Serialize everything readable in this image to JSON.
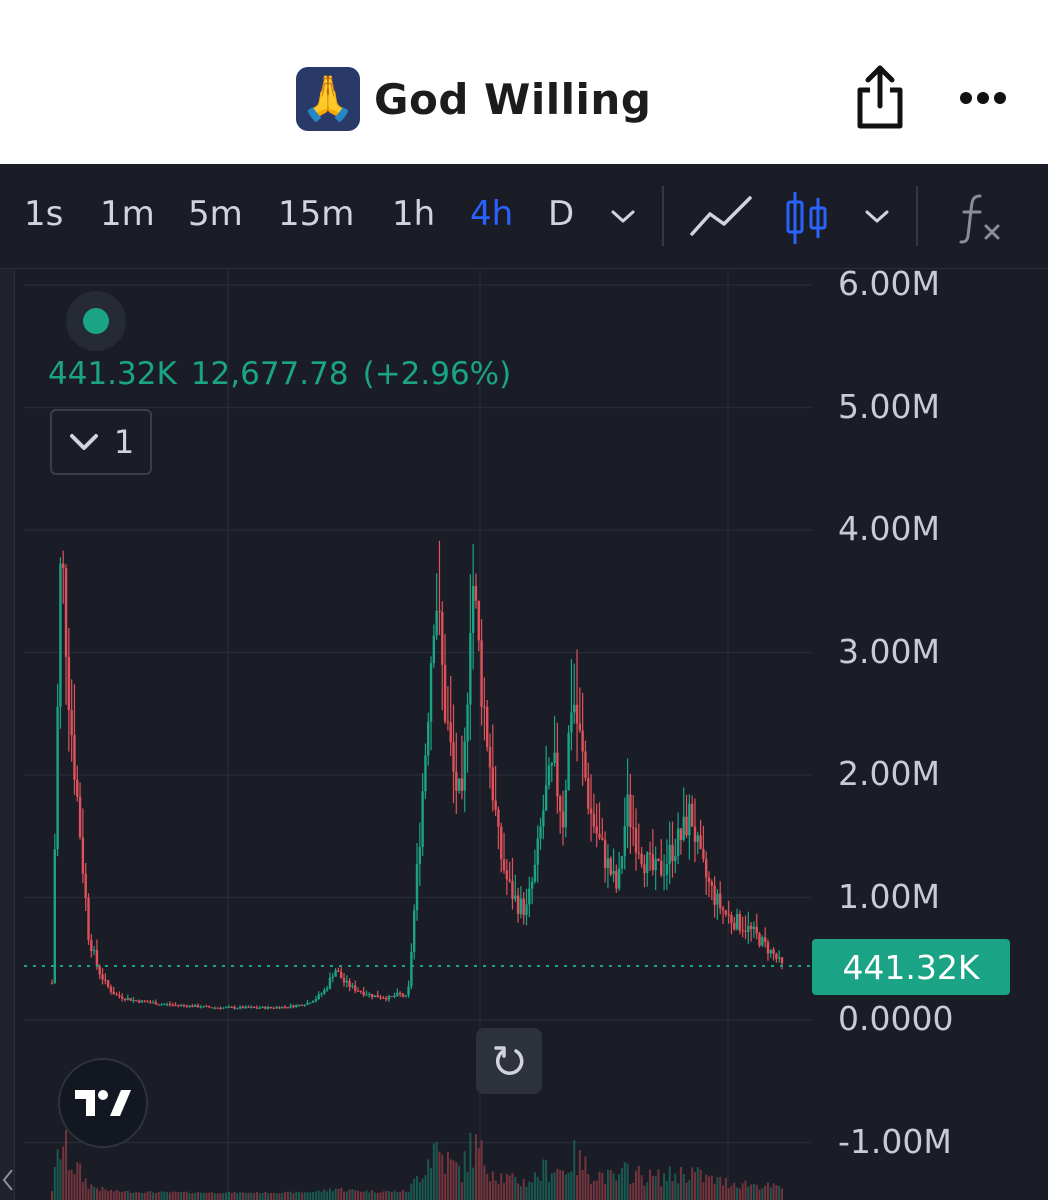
{
  "header": {
    "emoji": "🙏",
    "title": "God Willing"
  },
  "toolbar": {
    "timeframes": [
      "1s",
      "1m",
      "5m",
      "15m",
      "1h",
      "4h",
      "D"
    ],
    "active_timeframe": "4h",
    "icons": [
      "chevron-down-icon",
      "line-chart-icon",
      "candlestick-icon",
      "chevron-down-icon",
      "indicators-fx-icon"
    ],
    "accent": "#2962ff"
  },
  "legend": {
    "price": "441.32K",
    "change": "12,677.78",
    "change_pct": "(+2.96%)",
    "collapsed_count": "1",
    "color": "#1ba385"
  },
  "price_label": "441.32K",
  "chart_data": {
    "type": "candlestick",
    "y_tick_labels": [
      "6.00M",
      "5.00M",
      "4.00M",
      "3.00M",
      "2.00M",
      "1.00M",
      "0.0000",
      "-1.00M"
    ],
    "y_ticks": [
      6000000,
      5000000,
      4000000,
      3000000,
      2000000,
      1000000,
      0,
      -1000000
    ],
    "current_price": 441320,
    "up_color": "#1ba385",
    "down_color": "#e0525a",
    "grid": true,
    "series": [
      {
        "values": [
          300000,
          3900000,
          2500000,
          1600000,
          700000,
          420000,
          280000,
          200000,
          180000,
          160000,
          150000,
          140000,
          130000,
          125000,
          120000,
          115000,
          110000,
          105000,
          100000,
          100000,
          100000,
          100000,
          100000,
          100000,
          100000,
          105000,
          110000,
          120000,
          140000,
          180000,
          250000,
          420000,
          310000,
          260000,
          230000,
          200000,
          190000,
          180000,
          210000,
          180000,
          1200000,
          2300000,
          3600000,
          2600000,
          2000000,
          1700000,
          3700000,
          2800000,
          2100000,
          1400000,
          1100000,
          950000,
          900000,
          1250000,
          1800000,
          2050000,
          1650000,
          2700000,
          2200000,
          1700000,
          1450000,
          1250000,
          1050000,
          1750000,
          1500000,
          1300000,
          1200000,
          1250000,
          1400000,
          1500000,
          1700000,
          1300000,
          1100000,
          950000,
          850000,
          800000,
          760000,
          700000,
          620000,
          540000,
          441320
        ]
      }
    ]
  }
}
